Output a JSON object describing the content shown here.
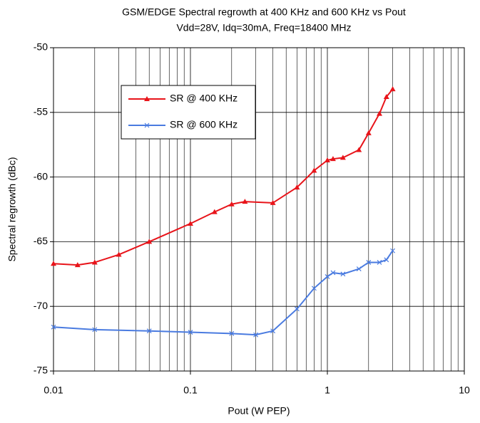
{
  "chart_data": {
    "type": "line",
    "title": "GSM/EDGE Spectral regrowth at 400 KHz and 600 KHz vs  Pout",
    "subtitle": "Vdd=28V, Idq=30mA, Freq=18400 MHz",
    "x_label": "Pout (W PEP)",
    "y_label": "Spectral regrowth (dBc)",
    "xscale": "log",
    "grid": true,
    "legend": "upper left",
    "xlim": [
      0.01,
      10
    ],
    "xticks": [
      0.01,
      0.1,
      1,
      10
    ],
    "ylim": [
      -75,
      -50
    ],
    "yticks": [
      -75,
      -70,
      -65,
      -60,
      -55,
      -50
    ],
    "series": [
      {
        "name": "SR @ 400 KHz",
        "color": "#e8141a",
        "marker": "triangle",
        "x": [
          0.01,
          0.015,
          0.02,
          0.03,
          0.05,
          0.1,
          0.15,
          0.2,
          0.25,
          0.4,
          0.6,
          0.8,
          1.0,
          1.1,
          1.3,
          1.7,
          2.0,
          2.4,
          2.7,
          3.0
        ],
        "values": [
          -66.7,
          -66.8,
          -66.6,
          -66.0,
          -65.0,
          -63.6,
          -62.7,
          -62.1,
          -61.9,
          -62.0,
          -60.8,
          -59.5,
          -58.7,
          -58.6,
          -58.5,
          -57.9,
          -56.6,
          -55.1,
          -53.8,
          -53.2
        ]
      },
      {
        "name": "SR @ 600 KHz",
        "color": "#4a7be0",
        "marker": "x",
        "x": [
          0.01,
          0.02,
          0.05,
          0.1,
          0.2,
          0.3,
          0.4,
          0.6,
          0.8,
          1.0,
          1.1,
          1.3,
          1.7,
          2.0,
          2.4,
          2.7,
          3.0
        ],
        "values": [
          -71.6,
          -71.8,
          -71.9,
          -72.0,
          -72.1,
          -72.2,
          -71.9,
          -70.2,
          -68.6,
          -67.7,
          -67.4,
          -67.5,
          -67.1,
          -66.6,
          -66.6,
          -66.4,
          -65.7
        ]
      }
    ]
  }
}
